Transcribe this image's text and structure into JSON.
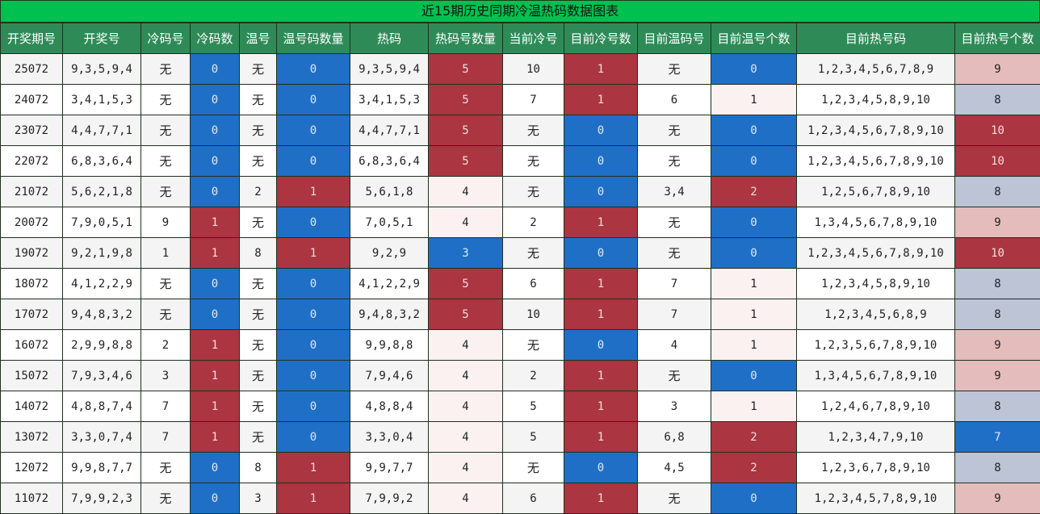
{
  "title": "近15期历史同期冷温热码数据图表",
  "headers": [
    "开奖期号",
    "开奖号",
    "冷码号",
    "冷码数",
    "温号",
    "温号码数量",
    "热码",
    "热码号数量",
    "当前冷号",
    "目前冷号数",
    "目前温码号",
    "目前温号个数",
    "目前热号码",
    "目前热号个数"
  ],
  "colors": {
    "header_bg": "#2e8b57",
    "title_bg": "#00c150",
    "blue": "#1f6fc6",
    "red": "#ab3540",
    "pale": "#fbf1f1",
    "pink": "#e4bcbc",
    "grey": "#bcc4d6"
  },
  "rows": [
    [
      "25072",
      "9,3,5,9,4",
      "无",
      "0",
      "无",
      "0",
      "9,3,5,9,4",
      "5",
      "10",
      "1",
      "无",
      "0",
      "1,2,3,4,5,6,7,8,9",
      "9"
    ],
    [
      "24072",
      "3,4,1,5,3",
      "无",
      "0",
      "无",
      "0",
      "3,4,1,5,3",
      "5",
      "7",
      "1",
      "6",
      "1",
      "1,2,3,4,5,8,9,10",
      "8"
    ],
    [
      "23072",
      "4,4,7,7,1",
      "无",
      "0",
      "无",
      "0",
      "4,4,7,7,1",
      "5",
      "无",
      "0",
      "无",
      "0",
      "1,2,3,4,5,6,7,8,9,10",
      "10"
    ],
    [
      "22072",
      "6,8,3,6,4",
      "无",
      "0",
      "无",
      "0",
      "6,8,3,6,4",
      "5",
      "无",
      "0",
      "无",
      "0",
      "1,2,3,4,5,6,7,8,9,10",
      "10"
    ],
    [
      "21072",
      "5,6,2,1,8",
      "无",
      "0",
      "2",
      "1",
      "5,6,1,8",
      "4",
      "无",
      "0",
      "3,4",
      "2",
      "1,2,5,6,7,8,9,10",
      "8"
    ],
    [
      "20072",
      "7,9,0,5,1",
      "9",
      "1",
      "无",
      "0",
      "7,0,5,1",
      "4",
      "2",
      "1",
      "无",
      "0",
      "1,3,4,5,6,7,8,9,10",
      "9"
    ],
    [
      "19072",
      "9,2,1,9,8",
      "1",
      "1",
      "8",
      "1",
      "9,2,9",
      "3",
      "无",
      "0",
      "无",
      "0",
      "1,2,3,4,5,6,7,8,9,10",
      "10"
    ],
    [
      "18072",
      "4,1,2,2,9",
      "无",
      "0",
      "无",
      "0",
      "4,1,2,2,9",
      "5",
      "6",
      "1",
      "7",
      "1",
      "1,2,3,4,5,8,9,10",
      "8"
    ],
    [
      "17072",
      "9,4,8,3,2",
      "无",
      "0",
      "无",
      "0",
      "9,4,8,3,2",
      "5",
      "10",
      "1",
      "7",
      "1",
      "1,2,3,4,5,6,8,9",
      "8"
    ],
    [
      "16072",
      "2,9,9,8,8",
      "2",
      "1",
      "无",
      "0",
      "9,9,8,8",
      "4",
      "无",
      "0",
      "4",
      "1",
      "1,2,3,5,6,7,8,9,10",
      "9"
    ],
    [
      "15072",
      "7,9,3,4,6",
      "3",
      "1",
      "无",
      "0",
      "7,9,4,6",
      "4",
      "2",
      "1",
      "无",
      "0",
      "1,3,4,5,6,7,8,9,10",
      "9"
    ],
    [
      "14072",
      "4,8,8,7,4",
      "7",
      "1",
      "无",
      "0",
      "4,8,8,4",
      "4",
      "5",
      "1",
      "3",
      "1",
      "1,2,4,6,7,8,9,10",
      "8"
    ],
    [
      "13072",
      "3,3,0,7,4",
      "7",
      "1",
      "无",
      "0",
      "3,3,0,4",
      "4",
      "5",
      "1",
      "6,8",
      "2",
      "1,2,3,4,7,9,10",
      "7"
    ],
    [
      "12072",
      "9,9,8,7,7",
      "无",
      "0",
      "8",
      "1",
      "9,9,7,7",
      "4",
      "无",
      "0",
      "4,5",
      "2",
      "1,2,3,6,7,8,9,10",
      "8"
    ],
    [
      "11072",
      "7,9,9,2,3",
      "无",
      "0",
      "3",
      "1",
      "7,9,9,2",
      "4",
      "6",
      "1",
      "无",
      "0",
      "1,2,3,4,5,7,8,9,10",
      "9"
    ]
  ]
}
